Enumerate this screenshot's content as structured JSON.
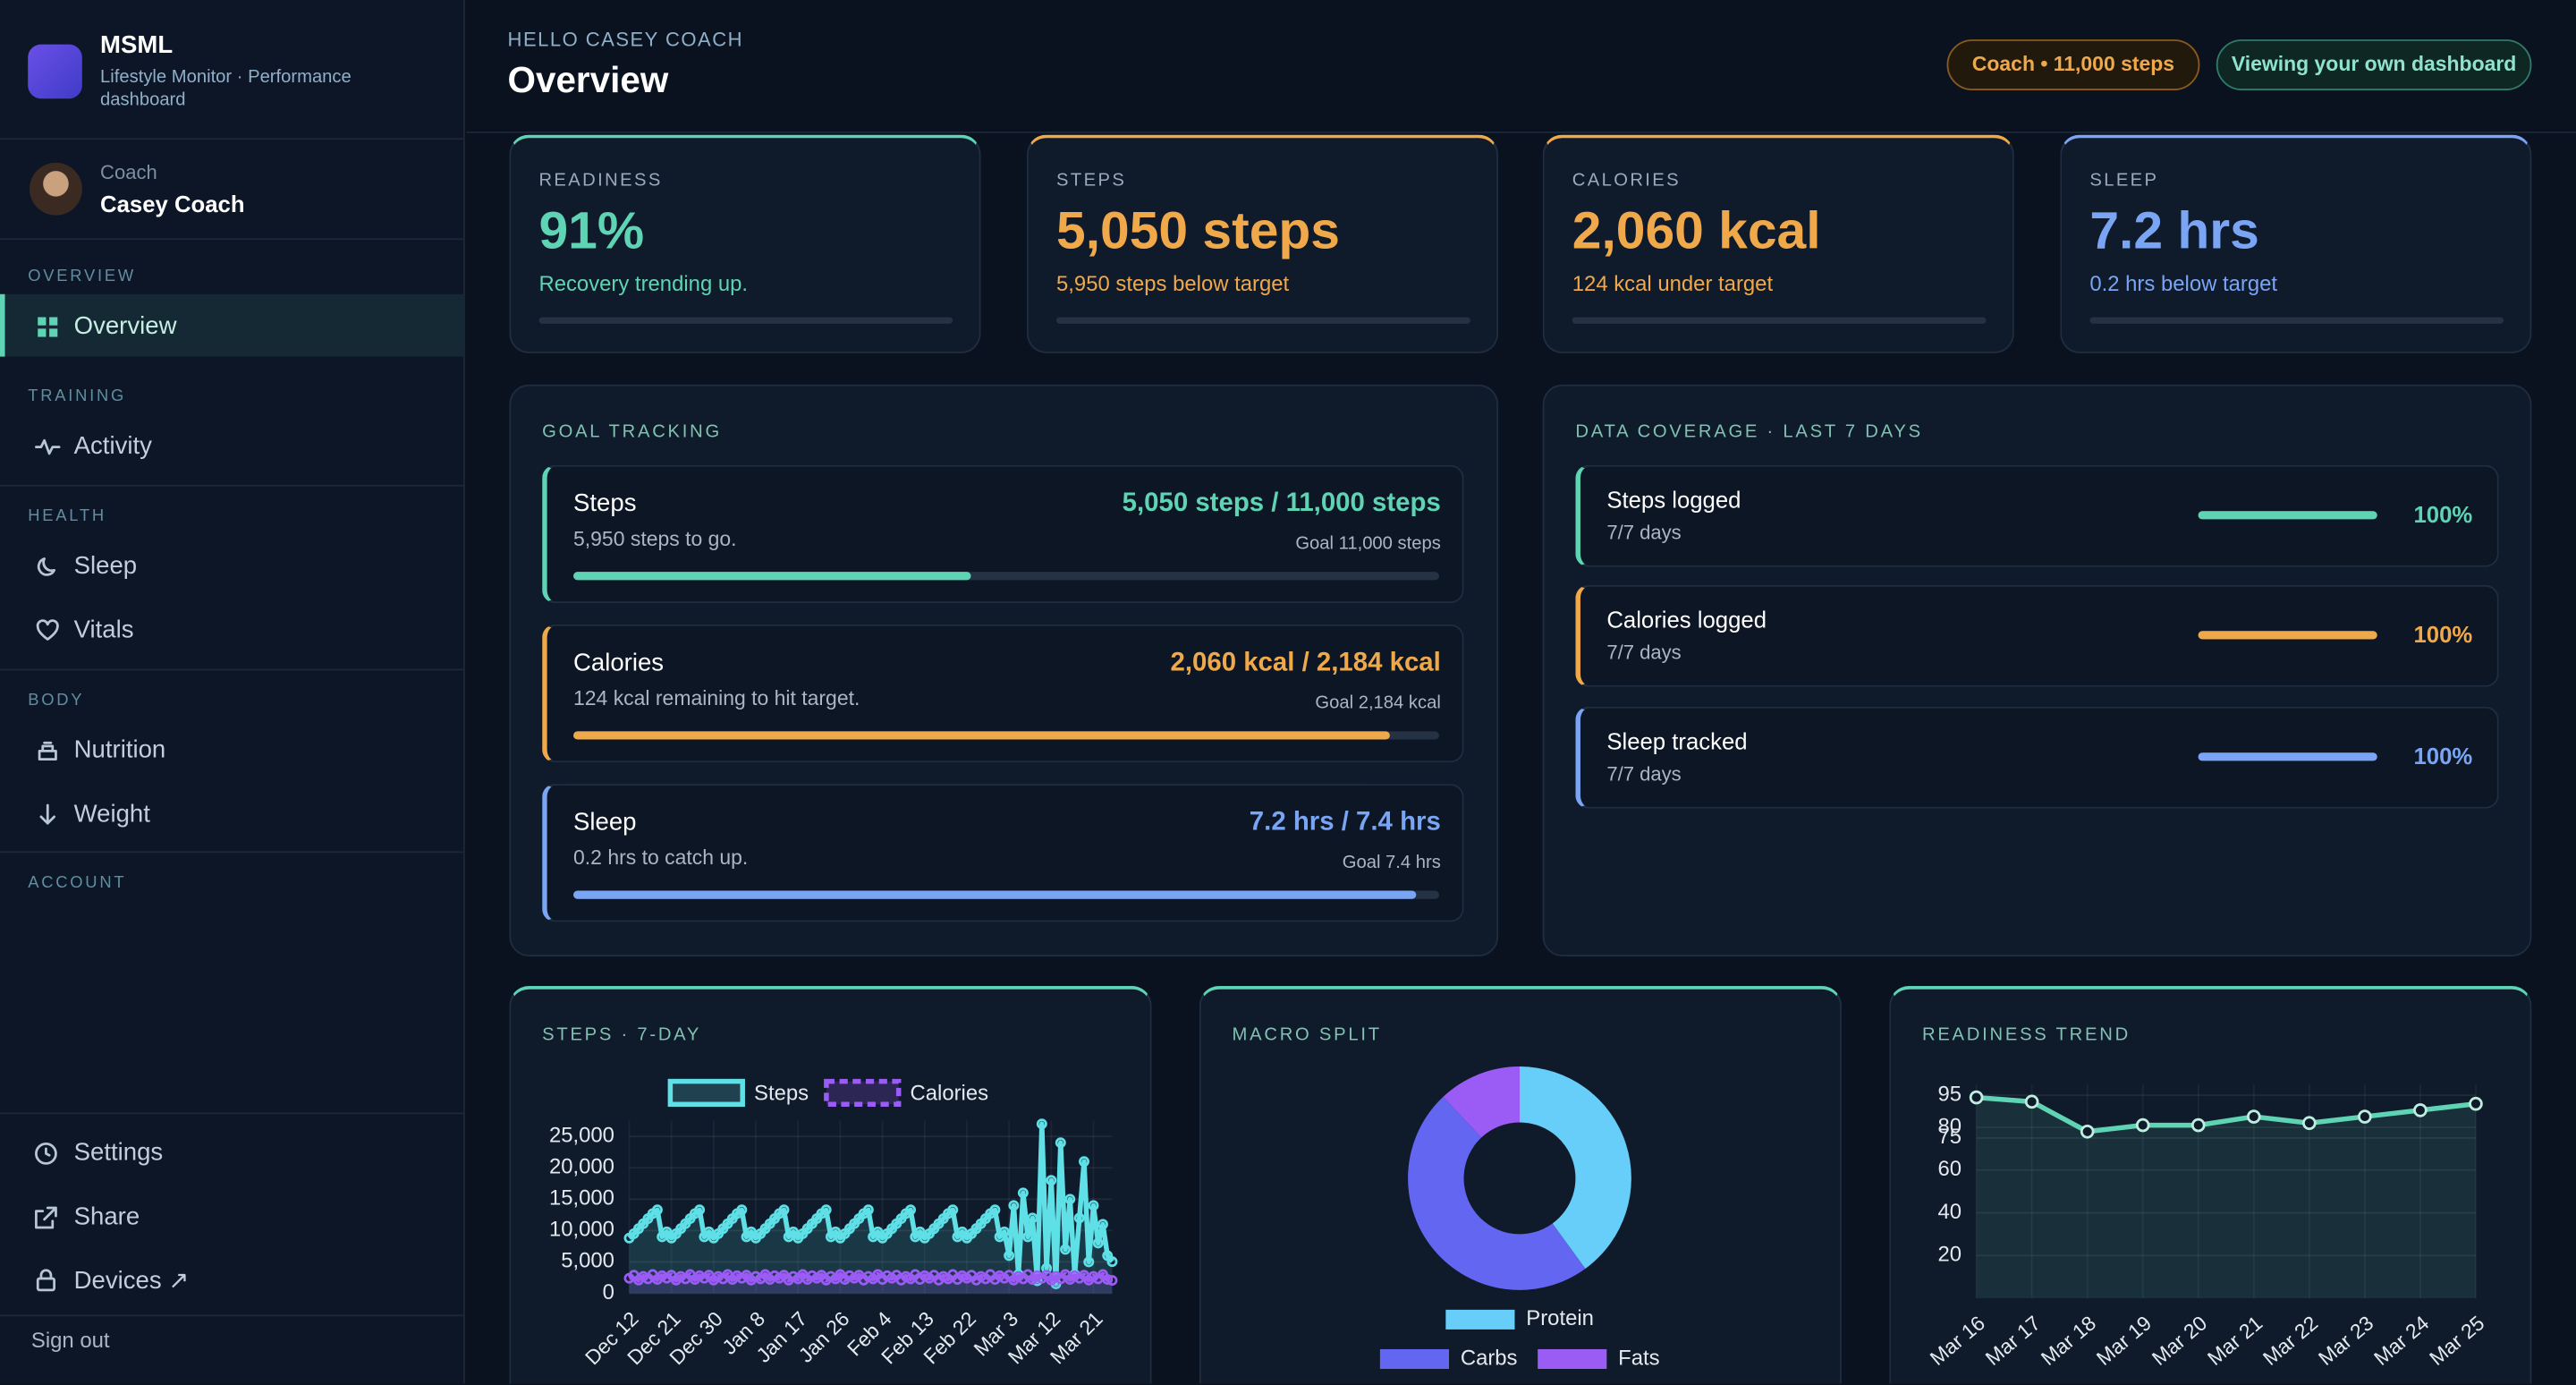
{
  "sidebar": {
    "brand": "MSML",
    "tagline": "Lifestyle Monitor · Performance dashboard",
    "user_role": "Coach",
    "user_name": "Casey Coach",
    "sections": [
      {
        "title": "OVERVIEW",
        "items": [
          "Overview"
        ]
      },
      {
        "title": "TRAINING",
        "items": [
          "Activity"
        ]
      },
      {
        "title": "HEALTH",
        "items": [
          "Sleep",
          "Vitals"
        ]
      },
      {
        "title": "BODY",
        "items": [
          "Nutrition",
          "Weight"
        ]
      },
      {
        "title": "ACCOUNT",
        "items": []
      }
    ],
    "footer_items": [
      "Settings",
      "Share",
      "Devices ↗"
    ],
    "sign_out": "Sign out"
  },
  "header": {
    "greeting": "HELLO CASEY COACH",
    "title": "Overview",
    "badges": [
      "Coach • 11,000 steps",
      "Viewing your own dashboard"
    ]
  },
  "cards": [
    {
      "label": "READINESS",
      "value": "91%",
      "note": "Recovery trending up.",
      "color": "#5fd4b4"
    },
    {
      "label": "STEPS",
      "value": "5,050 steps",
      "note": "5,950 steps below target",
      "color": "#f0a94a"
    },
    {
      "label": "CALORIES",
      "value": "2,060 kcal",
      "note": "124 kcal under target",
      "color": "#f0a94a"
    },
    {
      "label": "SLEEP",
      "value": "7.2 hrs",
      "note": "0.2 hrs below target",
      "color": "#7aa5f5"
    }
  ],
  "goals": {
    "title": "GOAL TRACKING",
    "items": [
      {
        "name": "Steps",
        "note": "5,950 steps to go.",
        "value": "5,050 steps / 11,000 steps",
        "goal": "Goal 11,000 steps",
        "progress": 45.9,
        "color": "#5fd4b4"
      },
      {
        "name": "Calories",
        "note": "124 kcal remaining to hit target.",
        "value": "2,060 kcal / 2,184 kcal",
        "goal": "Goal 2,184 kcal",
        "progress": 94.3,
        "color": "#f0a94a"
      },
      {
        "name": "Sleep",
        "note": "0.2 hrs to catch up.",
        "value": "7.2 hrs / 7.4 hrs",
        "goal": "Goal 7.4 hrs",
        "progress": 97.3,
        "color": "#7aa5f5"
      }
    ]
  },
  "coverage": {
    "title": "DATA COVERAGE · LAST 7 DAYS",
    "items": [
      {
        "name": "Steps logged",
        "note": "7/7 days",
        "coverage": 100,
        "coverage_label": "100%",
        "color": "#5fd4b4"
      },
      {
        "name": "Calories logged",
        "note": "7/7 days",
        "coverage": 100,
        "coverage_label": "100%",
        "color": "#f0a94a"
      },
      {
        "name": "Sleep tracked",
        "note": "7/7 days",
        "coverage": 100,
        "coverage_label": "100%",
        "color": "#7aa5f5"
      }
    ]
  },
  "chart_data": [
    {
      "type": "line",
      "title": "STEPS · 7-DAY",
      "categories": [
        "Dec 12",
        null,
        null,
        null,
        null,
        null,
        null,
        null,
        null,
        "Dec 21",
        null,
        null,
        null,
        null,
        null,
        null,
        null,
        null,
        "Dec 30",
        null,
        null,
        null,
        null,
        null,
        null,
        null,
        null,
        "Jan 8",
        null,
        null,
        null,
        null,
        null,
        null,
        null,
        null,
        "Jan 17",
        null,
        null,
        null,
        null,
        null,
        null,
        null,
        null,
        "Jan 26",
        null,
        null,
        null,
        null,
        null,
        null,
        null,
        null,
        "Feb 4",
        null,
        null,
        null,
        null,
        null,
        null,
        null,
        null,
        "Feb 13",
        null,
        null,
        null,
        null,
        null,
        null,
        null,
        null,
        "Feb 22",
        null,
        null,
        null,
        null,
        null,
        null,
        null,
        null,
        "Mar 3",
        null,
        null,
        null,
        null,
        null,
        null,
        null,
        null,
        "Mar 12",
        null,
        null,
        null,
        null,
        null,
        null,
        null,
        null,
        "Mar 21",
        null,
        null,
        null,
        null
      ],
      "series": [
        {
          "name": "Steps",
          "color": "#5ee0e6",
          "values": [
            8800,
            9500,
            10300,
            11100,
            11900,
            12700,
            13300,
            9000,
            9800,
            8800,
            9500,
            10300,
            11100,
            11900,
            12700,
            13300,
            9000,
            9800,
            8800,
            9500,
            10300,
            11100,
            11900,
            12700,
            13300,
            9000,
            9800,
            8800,
            9500,
            10300,
            11100,
            11900,
            12700,
            13300,
            9000,
            9800,
            8800,
            9500,
            10300,
            11100,
            11900,
            12700,
            13300,
            9000,
            9800,
            8800,
            9500,
            10300,
            11100,
            11900,
            12700,
            13300,
            9000,
            9800,
            8800,
            9500,
            10300,
            11100,
            11900,
            12700,
            13300,
            9000,
            9800,
            8800,
            9500,
            10300,
            11100,
            11900,
            12700,
            13300,
            9000,
            9800,
            8800,
            9500,
            10300,
            11100,
            11900,
            12700,
            13300,
            9000,
            9800,
            6000,
            14000,
            3000,
            16000,
            9000,
            12000,
            2000,
            27000,
            4000,
            18000,
            1500,
            24000,
            7000,
            15000,
            3000,
            12000,
            21000,
            5000,
            14000,
            8000,
            11000,
            6000,
            5050
          ]
        },
        {
          "name": "Calories",
          "color": "#9b5cf6",
          "dashed": true,
          "values": [
            2400,
            2900,
            2100,
            2700,
            2300,
            3000,
            2200,
            2800,
            2400,
            2900,
            2100,
            2700,
            2300,
            3000,
            2200,
            2800,
            2400,
            2900,
            2100,
            2700,
            2300,
            3000,
            2200,
            2800,
            2400,
            2900,
            2100,
            2700,
            2300,
            3000,
            2200,
            2800,
            2400,
            2900,
            2100,
            2700,
            2300,
            3000,
            2200,
            2800,
            2400,
            2900,
            2100,
            2700,
            2300,
            3000,
            2200,
            2800,
            2400,
            2900,
            2100,
            2700,
            2300,
            3000,
            2200,
            2800,
            2400,
            2900,
            2100,
            2700,
            2300,
            3000,
            2200,
            2800,
            2400,
            2900,
            2100,
            2700,
            2300,
            3000,
            2200,
            2800,
            2400,
            2900,
            2100,
            2700,
            2300,
            3000,
            2200,
            2800,
            2400,
            2900,
            2100,
            2700,
            2300,
            3000,
            2200,
            2800,
            2400,
            2900,
            2100,
            2700,
            2300,
            3000,
            2200,
            2800,
            2400,
            2900,
            2100,
            2700,
            2300,
            3000,
            2200,
            2060
          ]
        }
      ],
      "ylim": [
        0,
        27500
      ],
      "yticks": [
        0,
        {
          "value": 5000,
          "label": "5,000"
        },
        {
          "value": 10000,
          "label": "10,000"
        },
        {
          "value": 15000,
          "label": "15,000"
        },
        {
          "value": 20000,
          "label": "20,000"
        },
        {
          "value": 25000,
          "label": "25,000"
        }
      ],
      "grid": true,
      "legend": "top"
    },
    {
      "type": "donut",
      "title": "MACRO SPLIT",
      "categories": [
        "Protein",
        "Carbs",
        "Fats"
      ],
      "values": [
        40,
        48,
        12
      ],
      "colors": [
        "#67cdf9",
        "#6366f1",
        "#9b5cf6"
      ],
      "legend": "bottom"
    },
    {
      "type": "line",
      "title": "READINESS TREND",
      "categories": [
        "Mar 16",
        "Mar 17",
        "Mar 18",
        "Mar 19",
        "Mar 20",
        "Mar 21",
        "Mar 22",
        "Mar 23",
        "Mar 24",
        "Mar 25"
      ],
      "series": [
        {
          "name": "Readiness",
          "color": "#5fd4b4",
          "values": [
            94,
            92,
            78,
            81,
            81,
            85,
            82,
            85,
            88,
            91
          ]
        }
      ],
      "ylim": [
        0,
        100
      ],
      "yticks": [
        20,
        40,
        60,
        75,
        80,
        95
      ],
      "grid": true
    }
  ]
}
